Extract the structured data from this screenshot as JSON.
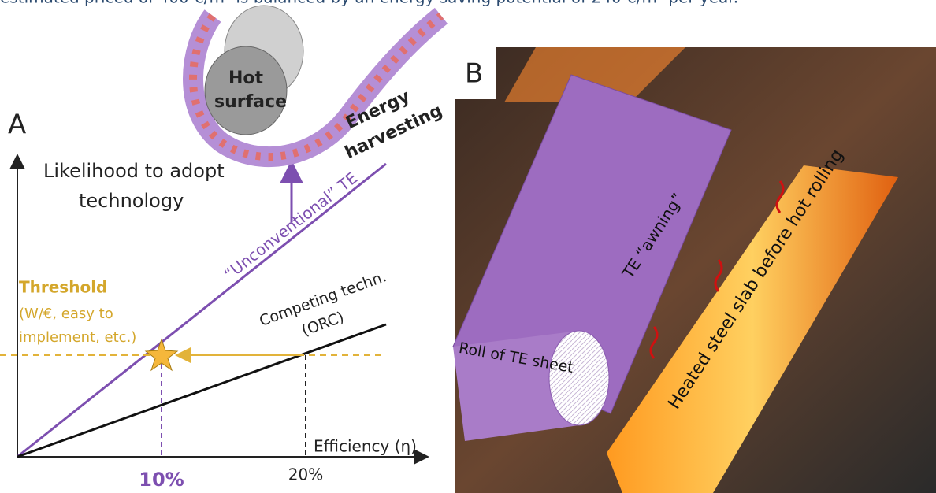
{
  "caption_fragment": "estimated priced of 400 €/m² is balanced by an energy saving potential of 240 €/m² per year.",
  "panel_a": {
    "label": "A",
    "y_axis": [
      "Likelihood to adopt",
      "technology"
    ],
    "threshold": {
      "title": "Threshold",
      "lines": [
        "(W/€, easy to",
        "implement, etc.)"
      ]
    },
    "unconventional": "“Unconventional” TE",
    "competing": [
      "Competing techn.",
      "(ORC)"
    ],
    "x_axis": "Efficiency (η)",
    "ticks": [
      "10%",
      "20%"
    ],
    "inset": {
      "hot": [
        "Hot",
        "surface"
      ],
      "harvest": [
        "Energy",
        "harvesting"
      ]
    }
  },
  "panel_b": {
    "label": "B",
    "awning": "TE “awning”",
    "slab": "Heated steel slab before hot rolling",
    "roll": "Roll of TE sheet"
  }
}
